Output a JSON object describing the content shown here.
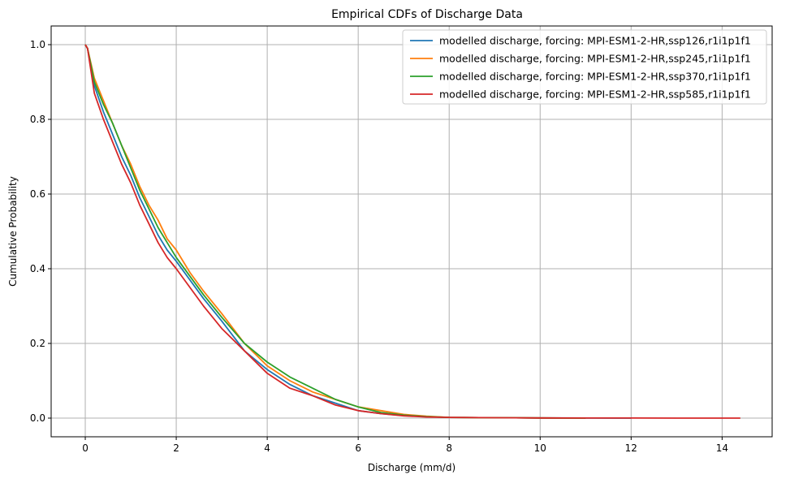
{
  "chart_data": {
    "type": "line",
    "title": "Empirical CDFs of Discharge Data",
    "xlabel": "Discharge (mm/d)",
    "ylabel": "Cumulative Probability",
    "xlim": [
      -0.75,
      15.1
    ],
    "ylim": [
      -0.05,
      1.05
    ],
    "xticks": [
      0,
      2,
      4,
      6,
      8,
      10,
      12,
      14
    ],
    "yticks": [
      0.0,
      0.2,
      0.4,
      0.6,
      0.8,
      1.0
    ],
    "xtick_labels": [
      "0",
      "2",
      "4",
      "6",
      "8",
      "10",
      "12",
      "14"
    ],
    "ytick_labels": [
      "0.0",
      "0.2",
      "0.4",
      "0.6",
      "0.8",
      "1.0"
    ],
    "grid": true,
    "legend_position": "top-right",
    "series": [
      {
        "name": "modelled discharge, forcing: MPI-ESM1-2-HR,ssp126,r1i1p1f1",
        "color": "#1f77b4",
        "x": [
          0,
          0.05,
          0.2,
          0.4,
          0.6,
          0.8,
          1.0,
          1.2,
          1.4,
          1.6,
          1.8,
          2.0,
          2.3,
          2.6,
          3.0,
          3.5,
          4.0,
          4.5,
          5.0,
          5.5,
          6.0,
          6.5,
          7.0,
          7.5,
          8.0,
          9.0,
          10.0,
          11.0,
          12.0
        ],
        "y": [
          1.0,
          0.99,
          0.89,
          0.82,
          0.76,
          0.7,
          0.65,
          0.59,
          0.54,
          0.49,
          0.45,
          0.42,
          0.37,
          0.32,
          0.26,
          0.18,
          0.13,
          0.09,
          0.06,
          0.04,
          0.02,
          0.012,
          0.007,
          0.004,
          0.002,
          0.001,
          0.0005,
          0.0002,
          0.0
        ]
      },
      {
        "name": "modelled discharge, forcing: MPI-ESM1-2-HR,ssp245,r1i1p1f1",
        "color": "#ff7f0e",
        "x": [
          0,
          0.05,
          0.2,
          0.4,
          0.6,
          0.8,
          1.0,
          1.2,
          1.4,
          1.6,
          1.8,
          2.0,
          2.3,
          2.6,
          3.0,
          3.5,
          4.0,
          4.5,
          5.0,
          5.5,
          6.0,
          6.5,
          7.0,
          7.5,
          8.0,
          9.0,
          10.0,
          11.0
        ],
        "y": [
          1.0,
          0.99,
          0.91,
          0.85,
          0.79,
          0.73,
          0.68,
          0.62,
          0.57,
          0.53,
          0.48,
          0.45,
          0.39,
          0.34,
          0.28,
          0.2,
          0.14,
          0.1,
          0.07,
          0.05,
          0.03,
          0.02,
          0.01,
          0.005,
          0.002,
          0.001,
          0.0005,
          0.0
        ]
      },
      {
        "name": "modelled discharge, forcing: MPI-ESM1-2-HR,ssp370,r1i1p1f1",
        "color": "#2ca02c",
        "x": [
          0,
          0.05,
          0.2,
          0.4,
          0.6,
          0.8,
          1.0,
          1.2,
          1.4,
          1.6,
          1.8,
          2.0,
          2.3,
          2.6,
          3.0,
          3.5,
          4.0,
          4.5,
          5.0,
          5.5,
          6.0,
          6.5,
          7.0,
          7.5,
          8.0,
          9.0,
          10.0,
          11.0
        ],
        "y": [
          1.0,
          0.99,
          0.9,
          0.84,
          0.79,
          0.73,
          0.67,
          0.61,
          0.56,
          0.51,
          0.47,
          0.43,
          0.38,
          0.33,
          0.27,
          0.2,
          0.15,
          0.11,
          0.08,
          0.05,
          0.03,
          0.015,
          0.008,
          0.004,
          0.002,
          0.001,
          0.0005,
          0.0
        ]
      },
      {
        "name": "modelled discharge, forcing: MPI-ESM1-2-HR,ssp585,r1i1p1f1",
        "color": "#d62728",
        "x": [
          0,
          0.05,
          0.2,
          0.4,
          0.6,
          0.8,
          1.0,
          1.2,
          1.4,
          1.6,
          1.8,
          2.0,
          2.3,
          2.6,
          3.0,
          3.5,
          4.0,
          4.5,
          5.0,
          5.5,
          6.0,
          6.5,
          7.0,
          7.5,
          8.0,
          9.0,
          10.0,
          11.0,
          12.0,
          13.0,
          14.4
        ],
        "y": [
          1.0,
          0.99,
          0.87,
          0.8,
          0.74,
          0.68,
          0.63,
          0.57,
          0.52,
          0.47,
          0.43,
          0.4,
          0.35,
          0.3,
          0.24,
          0.18,
          0.12,
          0.08,
          0.06,
          0.035,
          0.02,
          0.012,
          0.006,
          0.003,
          0.002,
          0.001,
          0.0005,
          0.0003,
          0.0002,
          0.0001,
          0.0
        ]
      }
    ]
  }
}
